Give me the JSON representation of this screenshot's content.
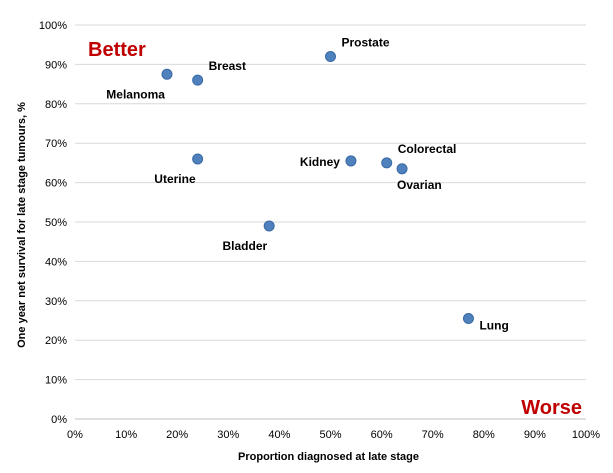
{
  "colors": {
    "marker": "#4f81bd",
    "marker_stroke": "#3a6aa5",
    "emphasis": "#c00000",
    "grid": "#d9d9d9",
    "axis": "#bfbfbf"
  },
  "chart_data": {
    "type": "scatter",
    "xlabel": "Proportion diagnosed at late stage",
    "ylabel": "One year net survival for late stage tumours, %",
    "xlim": [
      0,
      100
    ],
    "ylim": [
      0,
      100
    ],
    "x_ticks": [
      "0%",
      "10%",
      "20%",
      "30%",
      "40%",
      "50%",
      "60%",
      "70%",
      "80%",
      "90%",
      "100%"
    ],
    "y_ticks": [
      "0%",
      "10%",
      "20%",
      "30%",
      "40%",
      "50%",
      "60%",
      "70%",
      "80%",
      "90%",
      "100%"
    ],
    "grid": "horizontal",
    "annotations": {
      "top_left": "Better",
      "bottom_right": "Worse"
    },
    "points": [
      {
        "label": "Melanoma",
        "x": 18,
        "y": 87.5,
        "label_pos": "below-left"
      },
      {
        "label": "Breast",
        "x": 24,
        "y": 86,
        "label_pos": "above-right"
      },
      {
        "label": "Prostate",
        "x": 50,
        "y": 92,
        "label_pos": "above-right"
      },
      {
        "label": "Uterine",
        "x": 24,
        "y": 66,
        "label_pos": "below-left"
      },
      {
        "label": "Kidney",
        "x": 54,
        "y": 65.5,
        "label_pos": "left"
      },
      {
        "label": "Colorectal",
        "x": 61,
        "y": 65,
        "label_pos": "above-right"
      },
      {
        "label": "Ovarian",
        "x": 64,
        "y": 63.5,
        "label_pos": "below-right"
      },
      {
        "label": "Bladder",
        "x": 38,
        "y": 49,
        "label_pos": "below-left"
      },
      {
        "label": "Lung",
        "x": 77,
        "y": 25.5,
        "label_pos": "right"
      }
    ]
  }
}
